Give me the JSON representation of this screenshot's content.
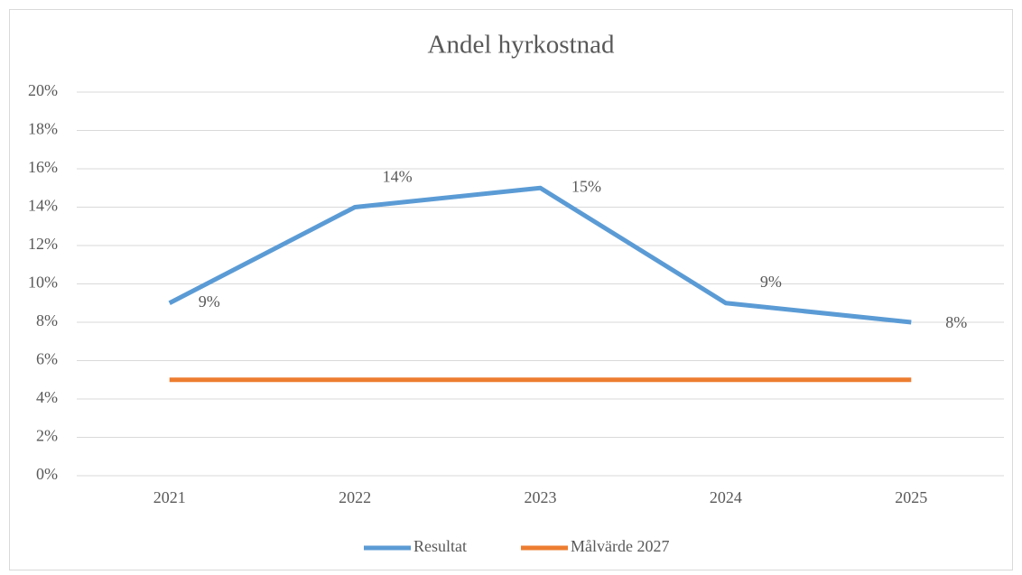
{
  "chart_data": {
    "type": "line",
    "title": "Andel hyrkostnad",
    "categories": [
      "2021",
      "2022",
      "2023",
      "2024",
      "2025"
    ],
    "series": [
      {
        "name": "Resultat",
        "color": "#5b9bd5",
        "values": [
          9,
          14,
          15,
          9,
          8
        ],
        "value_labels": [
          "9%",
          "14%",
          "15%",
          "9%",
          "8%"
        ]
      },
      {
        "name": "Målvärde 2027",
        "color": "#ed7d31",
        "values": [
          5,
          5,
          5,
          5,
          5
        ]
      }
    ],
    "ylim": [
      0,
      20
    ],
    "yticks": [
      {
        "value": 0,
        "label": "0%"
      },
      {
        "value": 2,
        "label": "2%"
      },
      {
        "value": 4,
        "label": "4%"
      },
      {
        "value": 6,
        "label": "6%"
      },
      {
        "value": 8,
        "label": "8%"
      },
      {
        "value": 10,
        "label": "10%"
      },
      {
        "value": 12,
        "label": "12%"
      },
      {
        "value": 14,
        "label": "14%"
      },
      {
        "value": 16,
        "label": "16%"
      },
      {
        "value": 18,
        "label": "18%"
      },
      {
        "value": 20,
        "label": "20%"
      }
    ],
    "grid": true,
    "legend": "bottom"
  }
}
